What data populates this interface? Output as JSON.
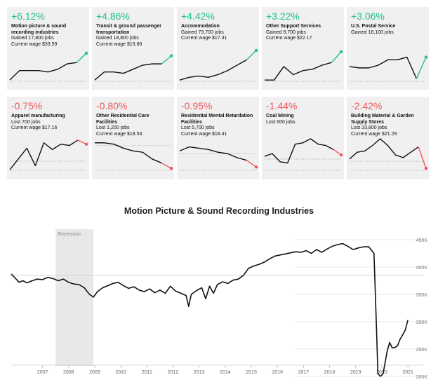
{
  "cards": [
    {
      "pct": "+6.12%",
      "name": "Motion picture & sound recording industries",
      "lines": [
        "Gained 17,800 jobs",
        "Current wage $33.59"
      ],
      "dir": "up",
      "spark": [
        2,
        9,
        9,
        9,
        8,
        10,
        14,
        15,
        22
      ]
    },
    {
      "pct": "+4.86%",
      "name": "Transit & ground passenger transportation",
      "lines": [
        "Gained 18,800 jobs",
        "Current wage $19.80"
      ],
      "dir": "up",
      "spark": [
        2,
        8,
        8,
        7,
        10,
        13,
        14,
        14,
        20
      ]
    },
    {
      "pct": "+4.42%",
      "name": "Accommodation",
      "lines": [
        "Gained 73,700 jobs",
        "Current wage $17.41"
      ],
      "dir": "up",
      "spark": [
        2,
        4,
        5,
        4,
        6,
        9,
        13,
        17,
        24
      ]
    },
    {
      "pct": "+3.22%",
      "name": "Other Support Services",
      "lines": [
        "Gained 9,700 jobs",
        "Current wage $22.17"
      ],
      "dir": "up",
      "spark": [
        2,
        2,
        12,
        6,
        9,
        10,
        13,
        15,
        23
      ]
    },
    {
      "pct": "+3.06%",
      "name": "U.S. Postal Service",
      "lines": [
        "Gained 18,100 jobs"
      ],
      "dir": "up",
      "spark": [
        12,
        11,
        11,
        13,
        17,
        17,
        19,
        3,
        19
      ]
    },
    {
      "pct": "-0.75%",
      "name": "Apparel manufacturing",
      "lines": [
        "Lost 700 jobs",
        "Current wage $17.16"
      ],
      "dir": "down",
      "spark": [
        2,
        10,
        18,
        5,
        22,
        17,
        21,
        20,
        24,
        21
      ]
    },
    {
      "pct": "-0.80%",
      "name": "Other Residential Care Facilities",
      "lines": [
        "Lost 1,200 jobs",
        "Current wage $18.54"
      ],
      "dir": "down",
      "spark": [
        22,
        22,
        21,
        18,
        16,
        15,
        10,
        7,
        3
      ]
    },
    {
      "pct": "-0.95%",
      "name": "Residential Mental Retardation Facilities",
      "lines": [
        "Lost 5,700 jobs",
        "Current wage $18.41"
      ],
      "dir": "down",
      "spark": [
        16,
        19,
        18,
        17,
        15,
        14,
        11,
        9,
        4
      ]
    },
    {
      "pct": "-1.44%",
      "name": "Coal Mining",
      "lines": [
        "Lost 600 jobs"
      ],
      "dir": "down",
      "spark": [
        12,
        14,
        8,
        7,
        21,
        22,
        25,
        21,
        20,
        17,
        13
      ]
    },
    {
      "pct": "-2.42%",
      "name": "Building Material & Garden Supply Stores",
      "lines": [
        "Lost 33,800 jobs",
        "Current wage $21.29"
      ],
      "dir": "down",
      "spark": [
        10,
        15,
        16,
        20,
        25,
        20,
        13,
        11,
        15,
        19,
        3
      ]
    }
  ],
  "colors": {
    "up": "#1fc28a",
    "down": "#f0545a",
    "line": "#111111",
    "card_bg": "#f0f0f0",
    "recession": "#e8e8e8"
  },
  "chart_data": {
    "type": "line",
    "title": "Motion Picture & Sound Recording Industries",
    "x_ticks": [
      "2007",
      "2008",
      "2009",
      "2010",
      "2011",
      "2012",
      "2013",
      "2014",
      "2015",
      "2016",
      "2017",
      "2018",
      "2019",
      "2020",
      "2021"
    ],
    "y_ticks": [
      "450K",
      "400K",
      "350K",
      "300K",
      "250K",
      "200K"
    ],
    "ylim": [
      200000,
      450000
    ],
    "xlim": [
      2006.3,
      2021.55
    ],
    "grid": true,
    "recession_label": "Recession",
    "recession": [
      2008.0,
      2009.45
    ],
    "points": [
      [
        2006.3,
        387000
      ],
      [
        2006.45,
        380000
      ],
      [
        2006.6,
        372000
      ],
      [
        2006.75,
        375000
      ],
      [
        2006.9,
        371000
      ],
      [
        2007.1,
        375000
      ],
      [
        2007.3,
        378000
      ],
      [
        2007.5,
        377000
      ],
      [
        2007.7,
        381000
      ],
      [
        2007.9,
        379000
      ],
      [
        2008.1,
        375000
      ],
      [
        2008.3,
        378000
      ],
      [
        2008.5,
        372000
      ],
      [
        2008.7,
        369000
      ],
      [
        2008.9,
        368000
      ],
      [
        2009.1,
        362000
      ],
      [
        2009.3,
        350000
      ],
      [
        2009.45,
        345000
      ],
      [
        2009.6,
        355000
      ],
      [
        2009.8,
        362000
      ],
      [
        2010.0,
        366000
      ],
      [
        2010.2,
        370000
      ],
      [
        2010.4,
        372000
      ],
      [
        2010.6,
        366000
      ],
      [
        2010.8,
        361000
      ],
      [
        2011.0,
        364000
      ],
      [
        2011.2,
        358000
      ],
      [
        2011.4,
        355000
      ],
      [
        2011.6,
        360000
      ],
      [
        2011.8,
        353000
      ],
      [
        2012.0,
        358000
      ],
      [
        2012.2,
        352000
      ],
      [
        2012.4,
        365000
      ],
      [
        2012.6,
        356000
      ],
      [
        2012.8,
        352000
      ],
      [
        2013.0,
        348000
      ],
      [
        2013.1,
        328000
      ],
      [
        2013.2,
        350000
      ],
      [
        2013.4,
        357000
      ],
      [
        2013.6,
        362000
      ],
      [
        2013.75,
        342000
      ],
      [
        2013.9,
        365000
      ],
      [
        2014.05,
        352000
      ],
      [
        2014.2,
        368000
      ],
      [
        2014.4,
        373000
      ],
      [
        2014.6,
        370000
      ],
      [
        2014.8,
        376000
      ],
      [
        2015.0,
        378000
      ],
      [
        2015.2,
        385000
      ],
      [
        2015.4,
        398000
      ],
      [
        2015.6,
        402000
      ],
      [
        2015.8,
        405000
      ],
      [
        2016.0,
        409000
      ],
      [
        2016.2,
        415000
      ],
      [
        2016.4,
        420000
      ],
      [
        2016.6,
        422000
      ],
      [
        2016.8,
        424000
      ],
      [
        2017.0,
        426000
      ],
      [
        2017.2,
        428000
      ],
      [
        2017.4,
        427000
      ],
      [
        2017.6,
        430000
      ],
      [
        2017.8,
        425000
      ],
      [
        2018.0,
        432000
      ],
      [
        2018.2,
        427000
      ],
      [
        2018.4,
        433000
      ],
      [
        2018.6,
        438000
      ],
      [
        2018.8,
        441000
      ],
      [
        2019.0,
        443000
      ],
      [
        2019.2,
        438000
      ],
      [
        2019.4,
        432000
      ],
      [
        2019.6,
        435000
      ],
      [
        2019.8,
        437000
      ],
      [
        2020.0,
        437000
      ],
      [
        2020.2,
        425000
      ],
      [
        2020.28,
        310000
      ],
      [
        2020.35,
        205000
      ],
      [
        2020.45,
        200000
      ],
      [
        2020.55,
        205000
      ],
      [
        2020.7,
        245000
      ],
      [
        2020.8,
        262000
      ],
      [
        2020.9,
        252000
      ],
      [
        2021.0,
        253000
      ],
      [
        2021.1,
        256000
      ],
      [
        2021.2,
        268000
      ],
      [
        2021.3,
        276000
      ],
      [
        2021.4,
        285000
      ],
      [
        2021.5,
        303000
      ]
    ]
  }
}
